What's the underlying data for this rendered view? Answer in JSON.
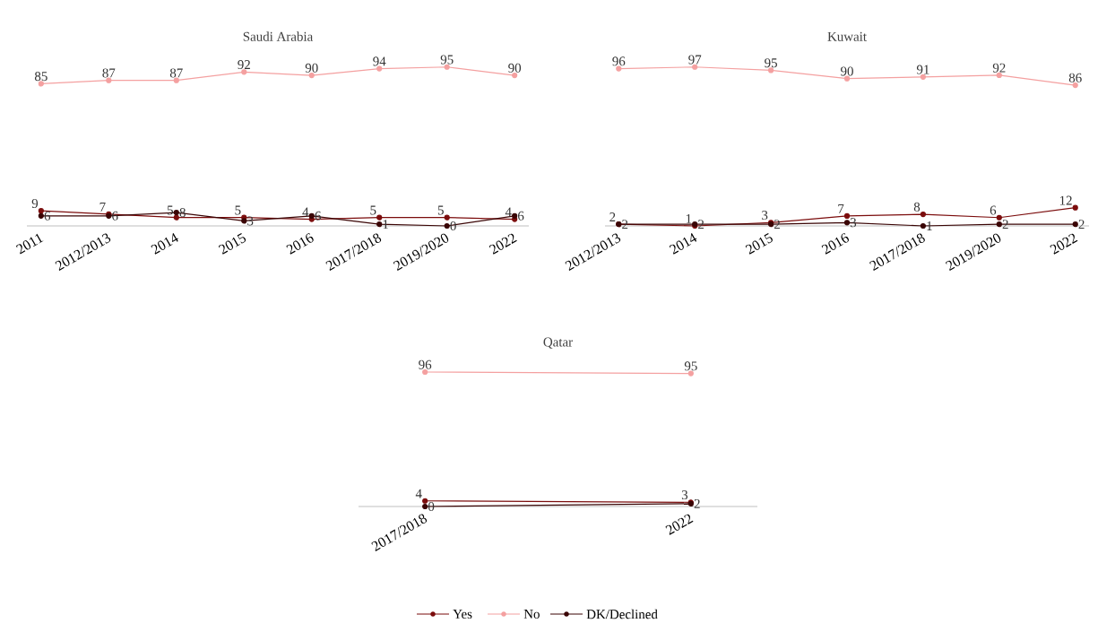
{
  "chart_data": [
    {
      "type": "line",
      "title": "Saudi Arabia",
      "categories": [
        "2011",
        "2012/2013",
        "2014",
        "2015",
        "2016",
        "2017/2018",
        "2019/2020",
        "2022"
      ],
      "data_labels": true,
      "marker": "circle",
      "line_style": "solid",
      "legend": "bottom",
      "series": [
        {
          "name": "Yes",
          "color": "#7b0c0c",
          "values": [
            9,
            7,
            5,
            5,
            4,
            5,
            5,
            4
          ]
        },
        {
          "name": "No",
          "color": "#f4a0a0",
          "values": [
            85,
            87,
            87,
            92,
            90,
            94,
            95,
            90
          ]
        },
        {
          "name": "DK/Declined",
          "color": "#3a0505",
          "values": [
            6,
            6,
            8,
            3,
            6,
            1,
            0,
            6
          ]
        }
      ]
    },
    {
      "type": "line",
      "title": "Kuwait",
      "categories": [
        "2012/2013",
        "2014",
        "2015",
        "2016",
        "2017/2018",
        "2019/2020",
        "2022"
      ],
      "data_labels": true,
      "marker": "circle",
      "line_style": "solid",
      "series": [
        {
          "color": "#7b0c0c",
          "values": [
            2,
            1,
            3,
            7,
            8,
            6,
            12
          ]
        },
        {
          "color": "#f4a0a0",
          "values": [
            96,
            97,
            95,
            90,
            91,
            92,
            86
          ]
        },
        {
          "color": "#3a0505",
          "values": [
            2,
            2,
            2,
            3,
            1,
            2,
            2
          ]
        }
      ]
    },
    {
      "type": "line",
      "title": "Qatar",
      "categories": [
        "2017/2018",
        "2022"
      ],
      "data_labels": true,
      "marker": "circle",
      "line_style": "solid",
      "series": [
        {
          "color": "#7b0c0c",
          "values": [
            4,
            3
          ]
        },
        {
          "color": "#f4a0a0",
          "values": [
            96,
            95
          ]
        },
        {
          "color": "#3a0505",
          "values": [
            0,
            2
          ]
        }
      ]
    }
  ]
}
